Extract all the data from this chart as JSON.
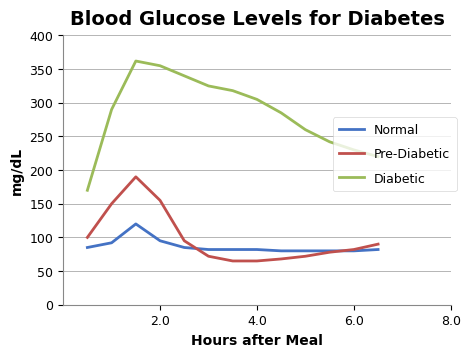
{
  "title": "Blood Glucose Levels for Diabetes",
  "xlabel": "Hours after Meal",
  "ylabel": "mg/dL",
  "xlim": [
    0,
    8.0
  ],
  "ylim": [
    0,
    400
  ],
  "xticks": [
    2.0,
    4.0,
    6.0,
    8.0
  ],
  "xtick_labels": [
    "2.0",
    "4.0",
    "6.0",
    "8.0"
  ],
  "yticks": [
    0,
    50,
    100,
    150,
    200,
    250,
    300,
    350,
    400
  ],
  "series": [
    {
      "label": "Normal",
      "color": "#4472C4",
      "x": [
        0.5,
        1.0,
        1.5,
        2.0,
        2.5,
        3.0,
        3.5,
        4.0,
        4.5,
        5.0,
        5.5,
        6.0,
        6.5
      ],
      "y": [
        85,
        92,
        120,
        95,
        85,
        82,
        82,
        82,
        80,
        80,
        80,
        80,
        82
      ]
    },
    {
      "label": "Pre-Diabetic",
      "color": "#C0504D",
      "x": [
        0.5,
        1.0,
        1.5,
        2.0,
        2.5,
        3.0,
        3.5,
        4.0,
        4.5,
        5.0,
        5.5,
        6.0,
        6.5
      ],
      "y": [
        100,
        150,
        190,
        155,
        95,
        72,
        65,
        65,
        68,
        72,
        78,
        82,
        90
      ]
    },
    {
      "label": "Diabetic",
      "color": "#9BBB59",
      "x": [
        0.5,
        1.0,
        1.5,
        2.0,
        2.5,
        3.0,
        3.5,
        4.0,
        4.5,
        5.0,
        5.5,
        6.0,
        6.5
      ],
      "y": [
        170,
        290,
        362,
        355,
        340,
        325,
        318,
        305,
        285,
        260,
        242,
        230,
        220
      ]
    }
  ],
  "title_fontsize": 14,
  "label_fontsize": 10,
  "tick_fontsize": 9,
  "line_width": 2.0,
  "background_color": "#FFFFFF",
  "grid_color": "#AAAAAA",
  "title_fontweight": "bold",
  "label_fontweight": "bold"
}
